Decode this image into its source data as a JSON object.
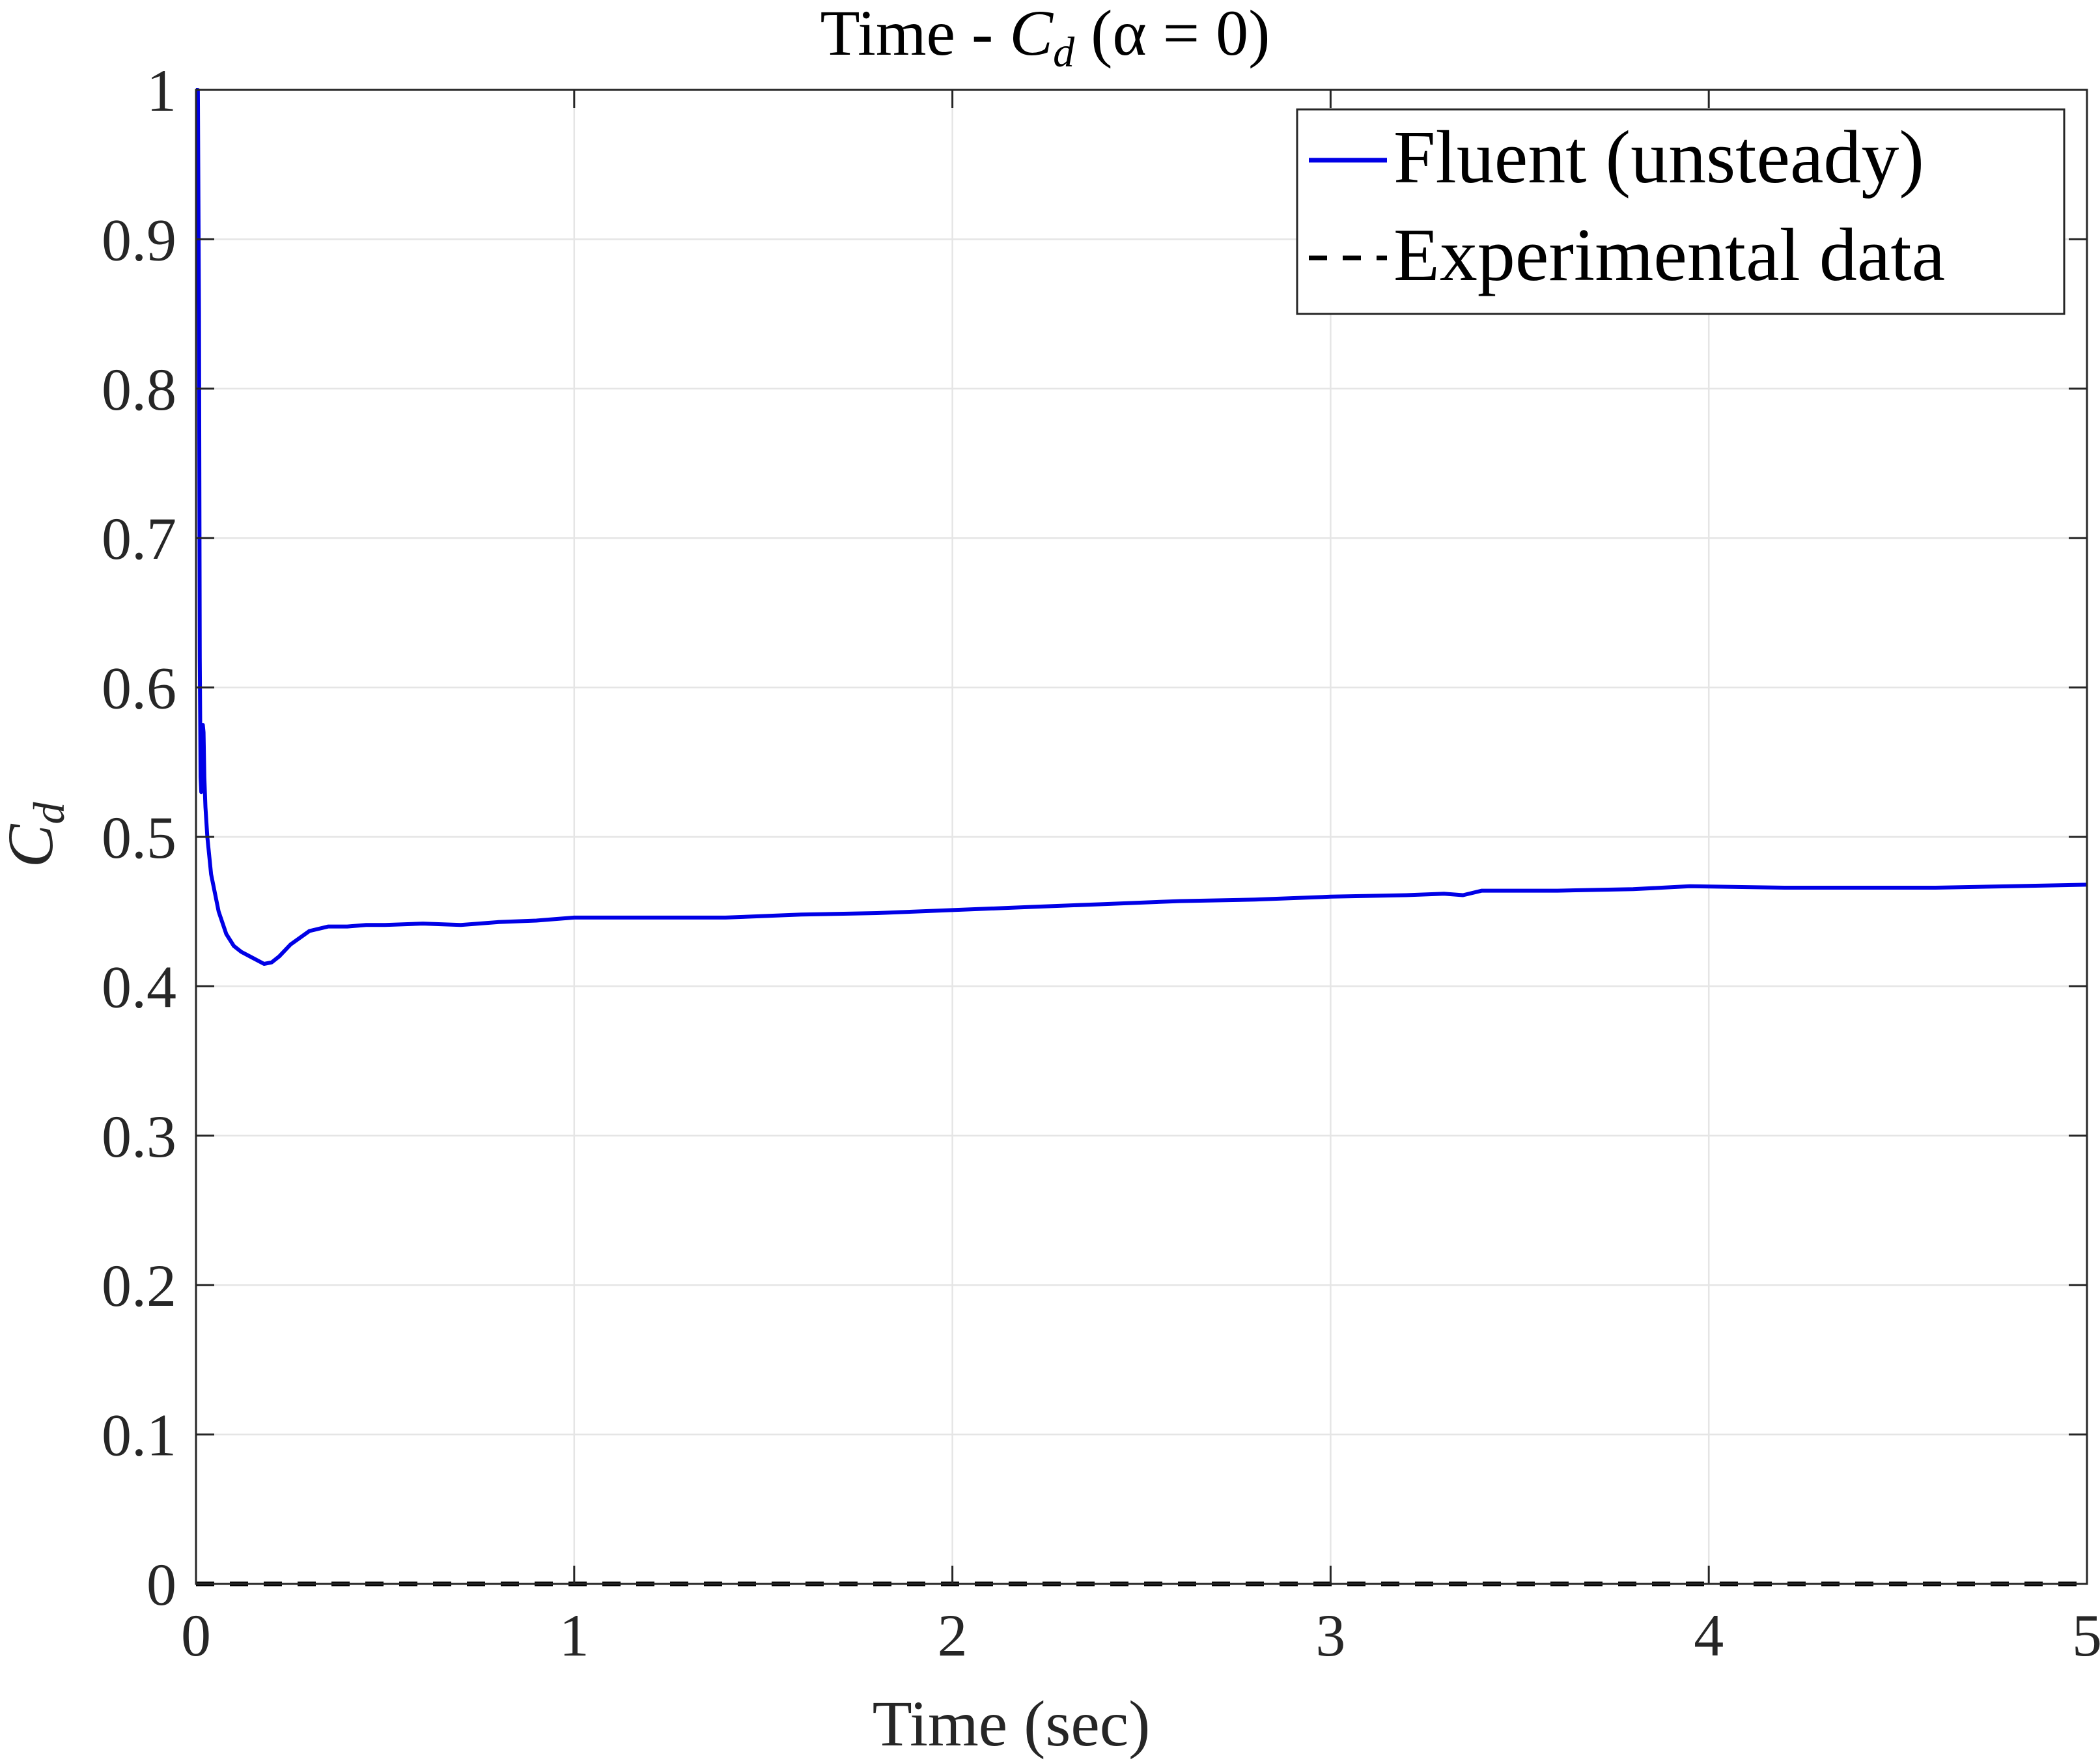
{
  "chart_data": {
    "type": "line",
    "title": "Time - C_d (α = 0)",
    "title_parts": {
      "prefix": "Time - ",
      "symbol": "C",
      "subscript": "d",
      "suffix": " (α = 0)"
    },
    "xlabel": "Time (sec)",
    "ylabel": {
      "symbol": "C",
      "subscript": "d"
    },
    "xlim": [
      0,
      5
    ],
    "ylim": [
      0,
      1
    ],
    "xticks": [
      "0",
      "1",
      "2",
      "3",
      "4",
      "5"
    ],
    "yticks": [
      "0",
      "0.1",
      "0.2",
      "0.3",
      "0.4",
      "0.5",
      "0.6",
      "0.7",
      "0.8",
      "0.9",
      "1"
    ],
    "grid": true,
    "legend_position": "top-right",
    "series": [
      {
        "name": "Fluent (unsteady)",
        "color": "#0000e6",
        "style": "solid",
        "x": [
          0.0,
          0.005,
          0.008,
          0.01,
          0.012,
          0.014,
          0.016,
          0.018,
          0.02,
          0.022,
          0.025,
          0.03,
          0.04,
          0.06,
          0.08,
          0.1,
          0.12,
          0.15,
          0.18,
          0.2,
          0.22,
          0.25,
          0.3,
          0.35,
          0.4,
          0.45,
          0.5,
          0.6,
          0.7,
          0.8,
          0.9,
          1.0,
          1.2,
          1.4,
          1.6,
          1.8,
          2.0,
          2.2,
          2.4,
          2.6,
          2.8,
          3.0,
          3.2,
          3.3,
          3.35,
          3.4,
          3.6,
          3.8,
          3.95,
          4.2,
          4.4,
          4.6,
          4.8,
          5.0
        ],
        "values": [
          1.0,
          1.0,
          0.85,
          0.62,
          0.54,
          0.53,
          0.55,
          0.575,
          0.57,
          0.54,
          0.52,
          0.5,
          0.475,
          0.45,
          0.435,
          0.427,
          0.423,
          0.419,
          0.415,
          0.416,
          0.42,
          0.428,
          0.437,
          0.44,
          0.44,
          0.441,
          0.441,
          0.442,
          0.441,
          0.443,
          0.444,
          0.446,
          0.446,
          0.446,
          0.448,
          0.449,
          0.451,
          0.453,
          0.455,
          0.457,
          0.458,
          0.46,
          0.461,
          0.462,
          0.461,
          0.464,
          0.464,
          0.465,
          0.467,
          0.466,
          0.466,
          0.466,
          0.467,
          0.468
        ]
      },
      {
        "name": "Experimental data",
        "color": "#000000",
        "style": "dashed",
        "x": [
          0,
          5
        ],
        "values": [
          0.0,
          0.0
        ]
      }
    ]
  }
}
